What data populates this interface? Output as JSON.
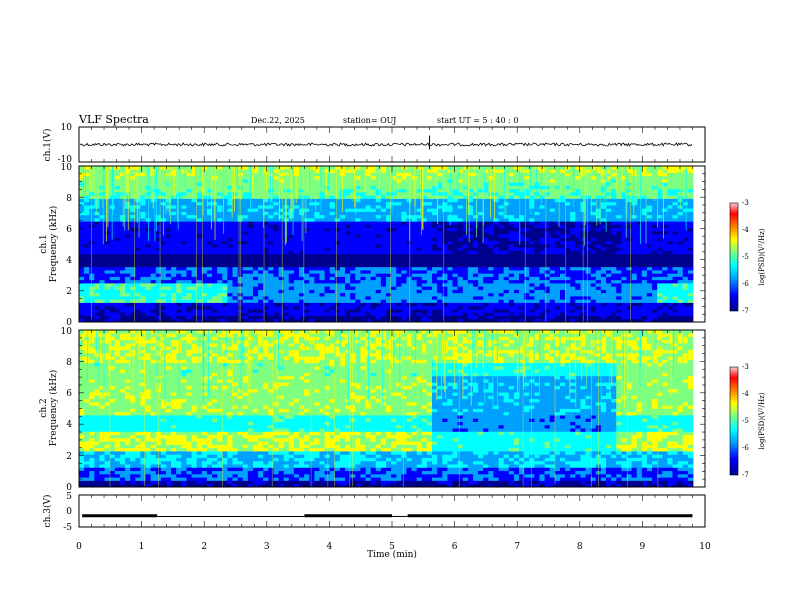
{
  "header": {
    "title": "VLF Spectra",
    "date": "Dec.22, 2025",
    "station": "station= OUJ",
    "start_ut": "start  UT =   5 : 40 : 0"
  },
  "chart_data": [
    {
      "type": "line",
      "name": "ch1-waveform",
      "ylabel": "ch.1(V)",
      "ylim": [
        -10,
        10
      ],
      "yticks": [
        "10",
        "-10"
      ],
      "xlim": [
        0,
        10
      ],
      "level": 0,
      "spike_at_min": 5.6,
      "color": "#000000"
    },
    {
      "type": "heatmap",
      "name": "ch1-spectrogram",
      "ylabel": "ch.1\nFrequency (kHz)",
      "ylim": [
        0,
        10
      ],
      "yticks": [
        "0",
        "2",
        "4",
        "6",
        "8",
        "10"
      ],
      "xlim": [
        0,
        10
      ],
      "colorbar": {
        "label": "log(PSD)(V²/Hz)",
        "range": [
          -7,
          -3
        ],
        "ticks": [
          "-3",
          "-4",
          "-5",
          "-6",
          "-7"
        ]
      }
    },
    {
      "type": "heatmap",
      "name": "ch2-spectrogram",
      "ylabel": "ch.2\nFrequency (kHz)",
      "ylim": [
        0,
        10
      ],
      "yticks": [
        "0",
        "2",
        "4",
        "6",
        "8",
        "10"
      ],
      "xlim": [
        0,
        10
      ],
      "colorbar": {
        "label": "log(PSD)(V²/Hz)",
        "range": [
          -7,
          -3
        ],
        "ticks": [
          "-3",
          "-4",
          "-5",
          "-6",
          "-7"
        ]
      }
    },
    {
      "type": "line",
      "name": "ch3-trace",
      "ylabel": "ch.3(V)",
      "ylim": [
        -5,
        5
      ],
      "yticks": [
        "5",
        "0",
        "-5"
      ],
      "xlim": [
        0,
        10
      ],
      "xlabel": "Time (min)",
      "xticks": [
        "0",
        "1",
        "2",
        "3",
        "4",
        "5",
        "6",
        "7",
        "8",
        "9",
        "10"
      ],
      "segments": [
        {
          "x": [
            0.05,
            1.25
          ],
          "y": -1.5
        },
        {
          "x": [
            1.25,
            3.6
          ],
          "y": -1.7
        },
        {
          "x": [
            3.6,
            5.0
          ],
          "y": -1.5
        },
        {
          "x": [
            5.0,
            5.25
          ],
          "y": -1.7
        },
        {
          "x": [
            5.25,
            9.8
          ],
          "y": -1.5
        }
      ]
    }
  ],
  "colors": {
    "background": "#ffffff",
    "axes": "#000000",
    "colormap": [
      "#00008f",
      "#0000ff",
      "#00a0ff",
      "#00ffff",
      "#7fff7f",
      "#ffff00",
      "#ff8000",
      "#ff0000",
      "#ffd0d0"
    ]
  }
}
